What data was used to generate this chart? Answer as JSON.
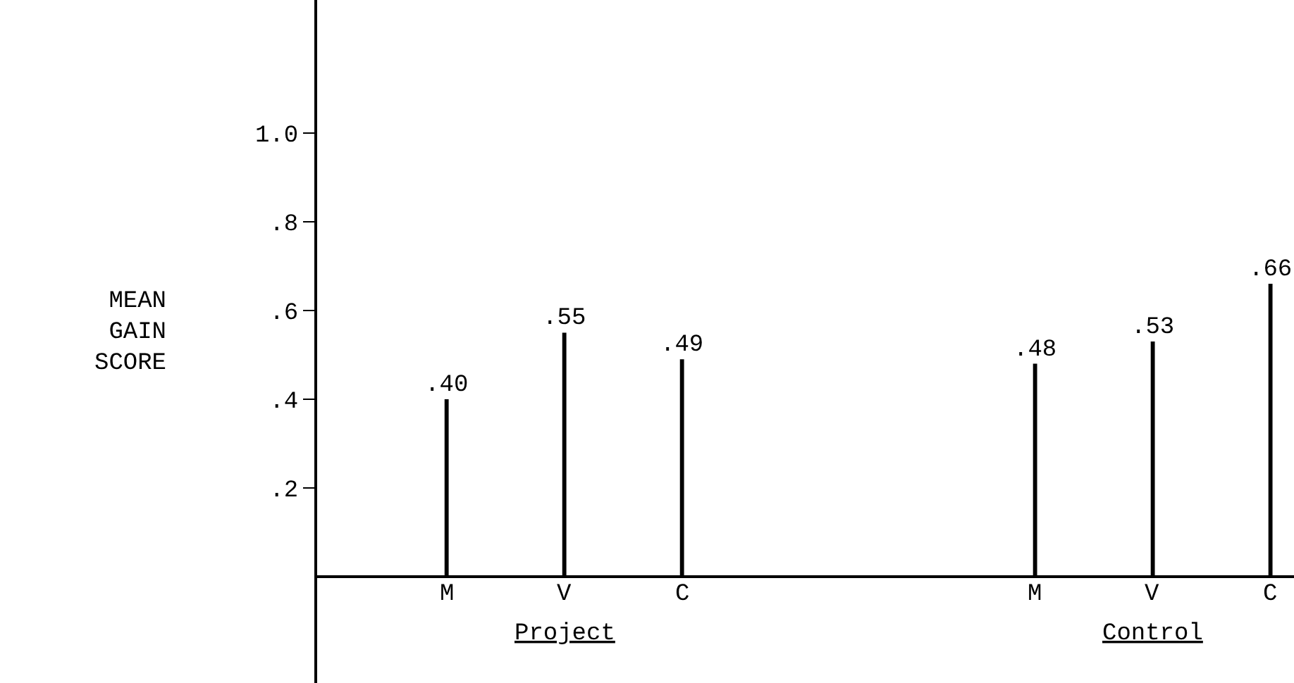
{
  "chart_data": {
    "type": "bar",
    "ylabel": "MEAN GAIN SCORE",
    "categories": [
      "M",
      "V",
      "C",
      null,
      null,
      "M",
      "V",
      "C"
    ],
    "values": [
      0.4,
      0.55,
      0.49,
      null,
      null,
      0.48,
      0.53,
      0.66
    ],
    "value_labels": [
      ".40",
      ".55",
      ".49",
      null,
      null,
      ".48",
      ".53",
      ".66"
    ],
    "color": "#000000",
    "ylim": [
      -0.24,
      1.3
    ],
    "yticks": [
      {
        "value": 0.2,
        "label": ".2"
      },
      {
        "value": 0.4,
        "label": ".4"
      },
      {
        "value": 0.6,
        "label": ".6"
      },
      {
        "value": 0.8,
        "label": ".8"
      },
      {
        "value": 1.0,
        "label": "1.0"
      }
    ],
    "annotations": [
      "Project",
      "Control"
    ]
  }
}
